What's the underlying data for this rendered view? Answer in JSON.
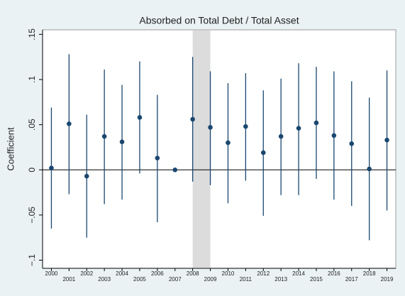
{
  "chart_data": {
    "type": "coefplot",
    "title": "Absorbed on Total Debt / Total Asset",
    "y_label": "Coefficient",
    "x": [
      2000,
      2001,
      2002,
      2003,
      2004,
      2005,
      2006,
      2007,
      2008,
      2009,
      2010,
      2011,
      2012,
      2013,
      2014,
      2015,
      2016,
      2017,
      2018,
      2019
    ],
    "values": [
      0.002,
      0.051,
      -0.007,
      0.037,
      0.031,
      0.058,
      0.013,
      0,
      0.056,
      0.047,
      0.03,
      0.048,
      0.019,
      0.037,
      0.046,
      0.052,
      0.038,
      0.029,
      0.001,
      0.033
    ],
    "lower": [
      -0.065,
      -0.027,
      -0.075,
      -0.038,
      -0.033,
      -0.004,
      -0.058,
      null,
      -0.013,
      -0.017,
      -0.037,
      -0.012,
      -0.051,
      -0.028,
      -0.028,
      -0.01,
      -0.033,
      -0.04,
      -0.078,
      -0.045
    ],
    "upper": [
      0.069,
      0.128,
      0.061,
      0.111,
      0.094,
      0.12,
      0.083,
      null,
      0.125,
      0.109,
      0.096,
      0.107,
      0.088,
      0.101,
      0.118,
      0.114,
      0.109,
      0.098,
      0.08,
      0.11
    ],
    "color": "#1a476f",
    "shade": [
      2008,
      2009
    ],
    "xlim": [
      1999.5,
      2019.5
    ],
    "xticks": [
      2000,
      2001,
      2002,
      2003,
      2004,
      2005,
      2006,
      2007,
      2008,
      2009,
      2010,
      2011,
      2012,
      2013,
      2014,
      2015,
      2016,
      2017,
      2018,
      2019
    ],
    "ylim": [
      -0.109,
      0.155
    ],
    "yticks": [
      {
        "value": -0.1,
        "label": "−.1"
      },
      {
        "value": -0.05,
        "label": "−.05"
      },
      0,
      {
        "value": 0.05,
        "label": ".05"
      },
      {
        "value": 0.1,
        "label": ".1"
      },
      {
        "value": 0.15,
        "label": ".15"
      }
    ],
    "grid": false
  }
}
